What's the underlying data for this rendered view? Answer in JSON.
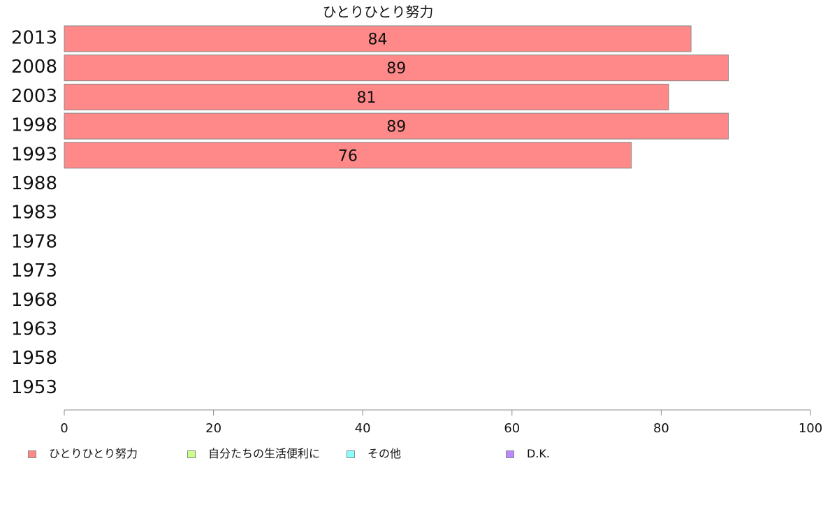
{
  "chart_data": {
    "type": "bar",
    "orientation": "horizontal",
    "title": "ひとりひとり努力",
    "categories": [
      "2013",
      "2008",
      "2003",
      "1998",
      "1993",
      "1988",
      "1983",
      "1978",
      "1973",
      "1968",
      "1963",
      "1958",
      "1953"
    ],
    "series": [
      {
        "name": "ひとりひとり努力",
        "color": "#ff8888",
        "values": [
          84,
          89,
          81,
          89,
          76,
          null,
          null,
          null,
          null,
          null,
          null,
          null,
          null
        ]
      }
    ],
    "data_labels": [
      "84",
      "89",
      "81",
      "89",
      "76"
    ],
    "xlim": [
      0,
      100
    ],
    "xticks": [
      0,
      20,
      40,
      60,
      80,
      100
    ],
    "grid": false,
    "legend_position": "bottom",
    "legend": [
      {
        "label": "ひとりひとり努力",
        "color": "#ff8888"
      },
      {
        "label": "自分たちの生活便利に",
        "color": "#ccff88"
      },
      {
        "label": "その他",
        "color": "#88ffff"
      },
      {
        "label": "D.K.",
        "color": "#bb88ff"
      }
    ]
  }
}
